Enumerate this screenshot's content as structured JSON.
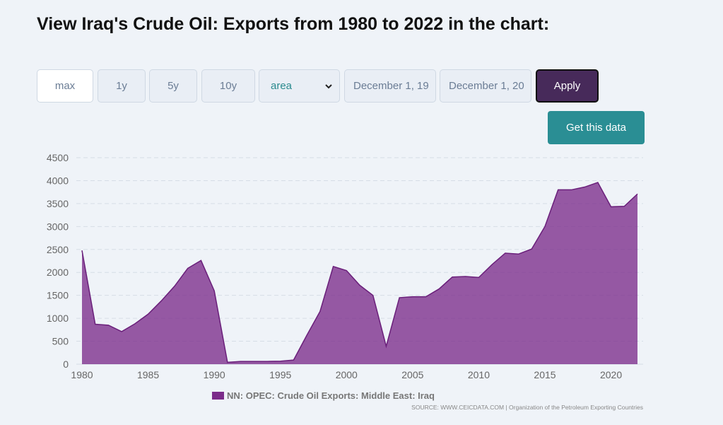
{
  "page": {
    "title": "View Iraq's Crude Oil: Exports from 1980 to 2022 in the chart:"
  },
  "controls": {
    "range_buttons": [
      "max",
      "1y",
      "5y",
      "10y"
    ],
    "active_range": "max",
    "chart_type_selected": "area",
    "start_date": "December 1, 19",
    "end_date": "December 1, 20",
    "apply_label": "Apply",
    "get_data_label": "Get this data"
  },
  "colors": {
    "area_fill": "#7b2c8a",
    "area_line": "#6a1f7a",
    "apply_bg": "#472a5a",
    "get_data_bg": "#2a8e94",
    "background": "#eff3f8"
  },
  "chart_data": {
    "type": "area",
    "title": "",
    "xlabel": "",
    "ylabel": "",
    "xlim": [
      1980,
      2022
    ],
    "ylim": [
      0,
      4500
    ],
    "x_ticks": [
      1980,
      1985,
      1990,
      1995,
      2000,
      2005,
      2010,
      2015,
      2020
    ],
    "y_ticks": [
      0,
      500,
      1000,
      1500,
      2000,
      2500,
      3000,
      3500,
      4000,
      4500
    ],
    "grid": true,
    "legend_position": "bottom-center",
    "series": [
      {
        "name": "NN: OPEC: Crude Oil Exports: Middle East: Iraq",
        "x": [
          1980,
          1981,
          1982,
          1983,
          1984,
          1985,
          1986,
          1987,
          1988,
          1989,
          1990,
          1991,
          1992,
          1993,
          1994,
          1995,
          1996,
          1997,
          1998,
          1999,
          2000,
          2001,
          2002,
          2003,
          2004,
          2005,
          2006,
          2007,
          2008,
          2009,
          2010,
          2011,
          2012,
          2013,
          2014,
          2015,
          2016,
          2017,
          2018,
          2019,
          2020,
          2021,
          2022
        ],
        "values": [
          2480,
          870,
          850,
          710,
          880,
          1090,
          1380,
          1700,
          2090,
          2260,
          1600,
          40,
          60,
          60,
          60,
          65,
          90,
          630,
          1150,
          2130,
          2040,
          1720,
          1500,
          390,
          1450,
          1470,
          1470,
          1640,
          1900,
          1910,
          1890,
          2170,
          2420,
          2400,
          2510,
          3000,
          3800,
          3800,
          3860,
          3960,
          3430,
          3440,
          3710
        ]
      }
    ],
    "source": "SOURCE: WWW.CEICDATA.COM | Organization of the Petroleum Exporting Countries"
  }
}
